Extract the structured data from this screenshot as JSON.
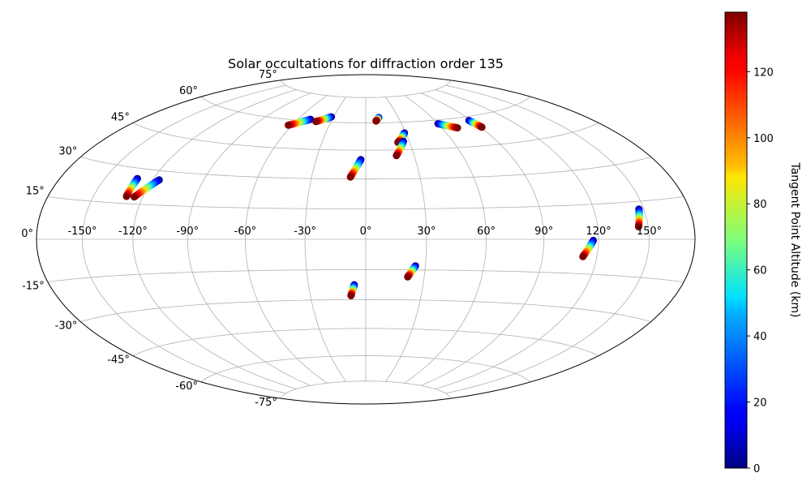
{
  "chart_data": {
    "type": "scatter",
    "projection": "hammer",
    "title": "Solar occultations for diffraction order 135",
    "lon_tick_labels": [
      "-150°",
      "-120°",
      "-90°",
      "-60°",
      "-30°",
      "0°",
      "30°",
      "60°",
      "90°",
      "120°",
      "150°"
    ],
    "lat_tick_labels": [
      "75°",
      "60°",
      "45°",
      "30°",
      "15°",
      "0°",
      "-15°",
      "-30°",
      "-45°",
      "-60°",
      "-75°"
    ],
    "grid": true,
    "colorbar": {
      "label": "Tangent Point Altitude (km)",
      "min": 0,
      "max": 138,
      "ticks": [
        "0",
        "20",
        "40",
        "60",
        "80",
        "100",
        "120"
      ],
      "colormap": "jet"
    },
    "occultations": [
      {
        "lon_start": -129.7,
        "lat_start": 25.7,
        "lon_end": -129.7,
        "lat_end": 18.0
      },
      {
        "lon_start": -116.0,
        "lat_start": 26.0,
        "lon_end": -125.0,
        "lat_end": 18.0
      },
      {
        "lon_start": -49.0,
        "lat_start": 61.0,
        "lon_end": -63.0,
        "lat_end": 57.0
      },
      {
        "lon_start": -32.0,
        "lat_start": 63.0,
        "lon_end": -43.0,
        "lat_end": 60.0
      },
      {
        "lon_start": 12.0,
        "lat_start": 63.0,
        "lon_end": 9.0,
        "lat_end": 61.0
      },
      {
        "lon_start": 29.0,
        "lat_start": 54.0,
        "lon_end": 22.0,
        "lat_end": 49.0
      },
      {
        "lon_start": 26.0,
        "lat_start": 49.5,
        "lon_end": 19.0,
        "lat_end": 42.0
      },
      {
        "lon_start": 60.0,
        "lat_start": 58.0,
        "lon_end": 72.0,
        "lat_end": 55.0
      },
      {
        "lon_start": 88.0,
        "lat_start": 58.0,
        "lon_end": 91.0,
        "lat_end": 54.0
      },
      {
        "lon_start": -3.0,
        "lat_start": 40.0,
        "lon_end": -8.5,
        "lat_end": 31.0
      },
      {
        "lon_start": 117.0,
        "lat_start": -0.5,
        "lon_end": 112.0,
        "lat_end": -7.5
      },
      {
        "lon_start": 147.0,
        "lat_start": 12.0,
        "lon_end": 144.0,
        "lat_end": 5.0
      },
      {
        "lon_start": 25.0,
        "lat_start": -13.0,
        "lon_end": 21.5,
        "lat_end": -18.5
      },
      {
        "lon_start": -6.0,
        "lat_start": -22.5,
        "lon_end": -8.0,
        "lat_end": -28.0
      }
    ]
  }
}
